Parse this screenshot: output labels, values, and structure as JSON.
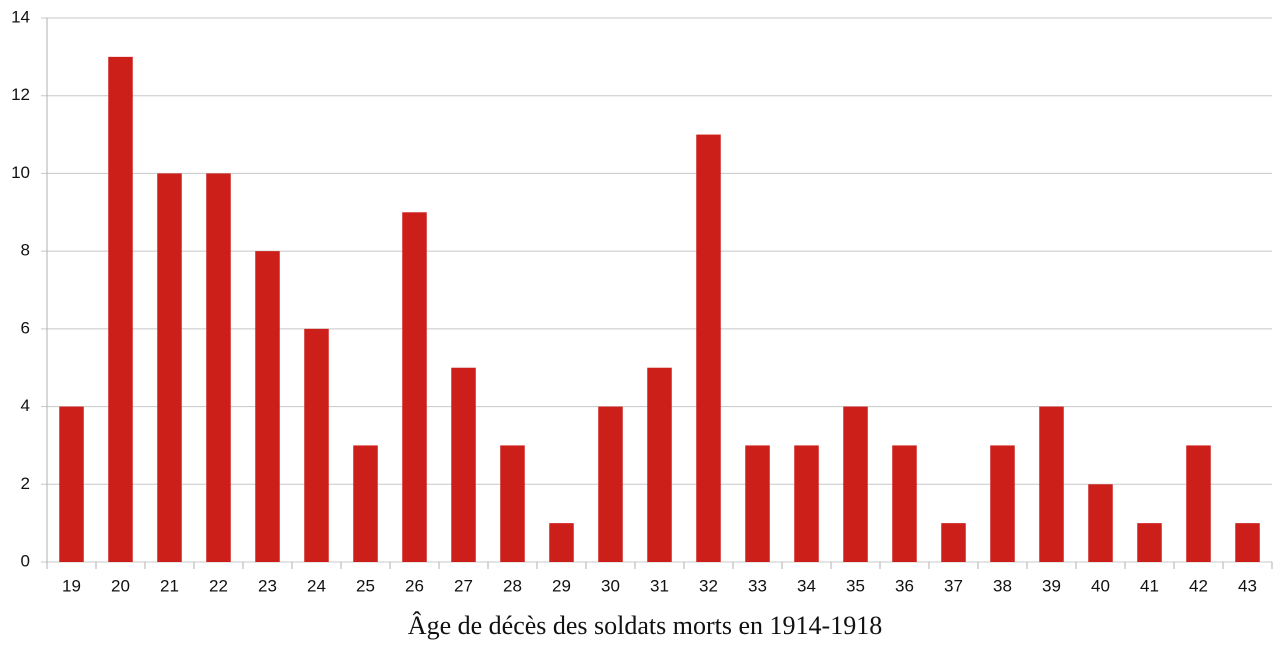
{
  "chart_data": {
    "type": "bar",
    "title": "Âge de décès des soldats morts en 1914-1918",
    "categories": [
      "19",
      "20",
      "21",
      "22",
      "23",
      "24",
      "25",
      "26",
      "27",
      "28",
      "29",
      "30",
      "31",
      "32",
      "33",
      "34",
      "35",
      "36",
      "37",
      "38",
      "39",
      "40",
      "41",
      "42",
      "43"
    ],
    "values": [
      4,
      13,
      10,
      10,
      8,
      6,
      3,
      9,
      5,
      3,
      1,
      4,
      5,
      11,
      3,
      3,
      4,
      3,
      1,
      3,
      4,
      2,
      1,
      3,
      1
    ],
    "color": "#cc1f1a",
    "ylim": [
      0,
      14
    ],
    "yticks": [
      0,
      2,
      4,
      6,
      8,
      10,
      12,
      14
    ],
    "grid": true
  }
}
